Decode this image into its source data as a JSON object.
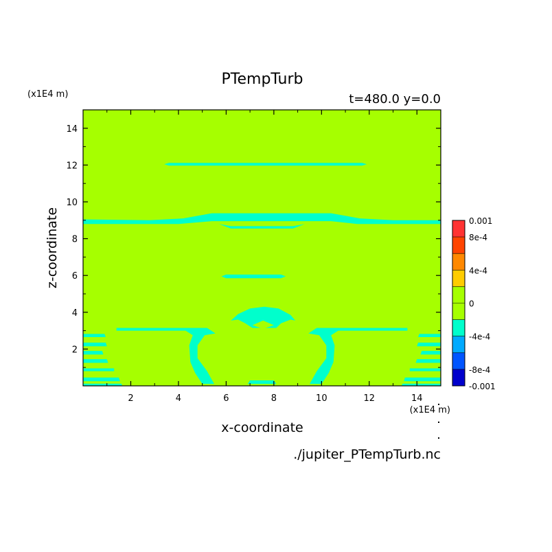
{
  "chart_data": {
    "type": "heatmap",
    "title": "PTempTurb",
    "subtitle": "t=480.0 y=0.0",
    "xlabel": "x-coordinate",
    "ylabel": "z-coordinate",
    "x_unit": "(x1E4 m)",
    "y_unit": "(x1E4 m)",
    "footer": "./jupiter_PTempTurb.nc",
    "xlim": [
      0,
      15
    ],
    "ylim": [
      0,
      15
    ],
    "x_ticks": [
      2,
      4,
      6,
      8,
      10,
      12,
      14
    ],
    "y_ticks": [
      2,
      4,
      6,
      8,
      10,
      12,
      14
    ],
    "background_value_color": "#a6ff00",
    "anomaly_color": "#00ffcc",
    "colorbar": {
      "labels": [
        {
          "value": 0.001,
          "text": "0.001"
        },
        {
          "value": 0.0008,
          "text": "8e-4"
        },
        {
          "value": 0.0004,
          "text": "4e-4"
        },
        {
          "value": 0,
          "text": "0"
        },
        {
          "value": -0.0004,
          "text": "-4e-4"
        },
        {
          "value": -0.0008,
          "text": "-8e-4"
        },
        {
          "value": -0.001,
          "text": "-0.001"
        }
      ],
      "bands": [
        {
          "from": 0.0008,
          "to": 0.001,
          "color": "#ff3333"
        },
        {
          "from": 0.0006,
          "to": 0.0008,
          "color": "#ff4400"
        },
        {
          "from": 0.0004,
          "to": 0.0006,
          "color": "#ff8800"
        },
        {
          "from": 0.0002,
          "to": 0.0004,
          "color": "#ffcc00"
        },
        {
          "from": 0,
          "to": 0.0002,
          "color": "#a6ff00"
        },
        {
          "from": -0.0002,
          "to": 0,
          "color": "#a6ff00"
        },
        {
          "from": -0.0004,
          "to": -0.0002,
          "color": "#00ffcc"
        },
        {
          "from": -0.0006,
          "to": -0.0004,
          "color": "#00aaff"
        },
        {
          "from": -0.0008,
          "to": -0.0006,
          "color": "#0055ff"
        },
        {
          "from": -0.001,
          "to": -0.0008,
          "color": "#0000cc"
        }
      ]
    },
    "regions": [
      {
        "name": "band-z12",
        "value_band": "-0.0004 to -0.0002",
        "poly": [
          [
            3.4,
            12.05
          ],
          [
            3.6,
            12.12
          ],
          [
            11.7,
            12.12
          ],
          [
            11.9,
            12.05
          ],
          [
            11.7,
            11.97
          ],
          [
            3.6,
            11.97
          ]
        ]
      },
      {
        "name": "band-z9",
        "value_band": "-0.0004 to -0.0002",
        "poly": [
          [
            0,
            9.05
          ],
          [
            2.8,
            9.0
          ],
          [
            4.2,
            9.1
          ],
          [
            5.4,
            9.38
          ],
          [
            10.4,
            9.38
          ],
          [
            11.6,
            9.1
          ],
          [
            13,
            9.0
          ],
          [
            15,
            9.0
          ],
          [
            15,
            8.8
          ],
          [
            11.5,
            8.8
          ],
          [
            10.4,
            8.95
          ],
          [
            5.4,
            8.95
          ],
          [
            4,
            8.8
          ],
          [
            0,
            8.8
          ]
        ]
      },
      {
        "name": "band-z8.6",
        "value_band": "-0.0004 to -0.0002",
        "poly": [
          [
            5.7,
            8.8
          ],
          [
            6.2,
            8.68
          ],
          [
            8.8,
            8.68
          ],
          [
            9.3,
            8.8
          ],
          [
            8.8,
            8.55
          ],
          [
            6.2,
            8.55
          ]
        ]
      },
      {
        "name": "band-z6",
        "value_band": "-0.0004 to -0.0002",
        "poly": [
          [
            5.8,
            5.95
          ],
          [
            6.0,
            6.05
          ],
          [
            8.3,
            6.05
          ],
          [
            8.5,
            5.95
          ],
          [
            8.3,
            5.85
          ],
          [
            6.0,
            5.85
          ]
        ]
      },
      {
        "name": "blob-z4",
        "value_band": "-0.0004 to -0.0002",
        "poly": [
          [
            6.2,
            3.55
          ],
          [
            6.5,
            3.9
          ],
          [
            7.0,
            4.2
          ],
          [
            7.6,
            4.3
          ],
          [
            8.2,
            4.2
          ],
          [
            8.7,
            3.85
          ],
          [
            8.9,
            3.55
          ],
          [
            8.7,
            3.6
          ],
          [
            8.3,
            3.4
          ],
          [
            8.1,
            3.15
          ],
          [
            7.1,
            3.15
          ],
          [
            6.8,
            3.4
          ],
          [
            6.5,
            3.6
          ]
        ]
      },
      {
        "name": "left-arm",
        "value_band": "-0.0004 to -0.0002",
        "poly": [
          [
            1.4,
            3.15
          ],
          [
            5.2,
            3.15
          ],
          [
            5.55,
            2.85
          ],
          [
            5.1,
            2.75
          ],
          [
            4.8,
            2.2
          ],
          [
            4.8,
            1.5
          ],
          [
            5.2,
            0.8
          ],
          [
            5.5,
            0.1
          ],
          [
            5.0,
            0.1
          ],
          [
            4.7,
            0.7
          ],
          [
            4.5,
            1.3
          ],
          [
            4.45,
            2.2
          ],
          [
            4.6,
            2.75
          ],
          [
            4.3,
            3.0
          ],
          [
            1.4,
            3.0
          ]
        ]
      },
      {
        "name": "right-arm",
        "value_band": "-0.0004 to -0.0002",
        "poly": [
          [
            13.6,
            3.15
          ],
          [
            9.8,
            3.15
          ],
          [
            9.45,
            2.85
          ],
          [
            9.9,
            2.75
          ],
          [
            10.2,
            2.2
          ],
          [
            10.2,
            1.5
          ],
          [
            9.8,
            0.8
          ],
          [
            9.5,
            0.1
          ],
          [
            10.0,
            0.1
          ],
          [
            10.3,
            0.7
          ],
          [
            10.5,
            1.3
          ],
          [
            10.55,
            2.2
          ],
          [
            10.4,
            2.75
          ],
          [
            10.7,
            3.0
          ],
          [
            13.6,
            3.0
          ]
        ]
      },
      {
        "name": "bottom-center",
        "value_band": "-0.0004 to -0.0002",
        "poly": [
          [
            6.9,
            0.1
          ],
          [
            7.0,
            0.3
          ],
          [
            8.0,
            0.3
          ],
          [
            8.1,
            0.1
          ]
        ]
      },
      {
        "name": "left-stripe-1",
        "value_band": "-0.0004 to -0.0002",
        "poly": [
          [
            0,
            2.82
          ],
          [
            0.9,
            2.82
          ],
          [
            0.95,
            2.65
          ],
          [
            0,
            2.65
          ]
        ]
      },
      {
        "name": "left-stripe-2",
        "value_band": "-0.0004 to -0.0002",
        "poly": [
          [
            0,
            2.35
          ],
          [
            0.95,
            2.35
          ],
          [
            1.0,
            2.15
          ],
          [
            0,
            2.15
          ]
        ]
      },
      {
        "name": "left-stripe-3",
        "value_band": "-0.0004 to -0.0002",
        "poly": [
          [
            0,
            1.9
          ],
          [
            0.8,
            1.9
          ],
          [
            0.85,
            1.7
          ],
          [
            0,
            1.7
          ]
        ]
      },
      {
        "name": "left-stripe-4",
        "value_band": "-0.0004 to -0.0002",
        "poly": [
          [
            0,
            1.45
          ],
          [
            1.0,
            1.45
          ],
          [
            1.05,
            1.25
          ],
          [
            0,
            1.25
          ]
        ]
      },
      {
        "name": "left-stripe-5",
        "value_band": "-0.0004 to -0.0002",
        "poly": [
          [
            0,
            0.95
          ],
          [
            1.3,
            0.95
          ],
          [
            1.3,
            0.8
          ],
          [
            0,
            0.8
          ]
        ]
      },
      {
        "name": "left-stripe-6",
        "value_band": "-0.0004 to -0.0002",
        "poly": [
          [
            0,
            0.45
          ],
          [
            1.5,
            0.45
          ],
          [
            1.55,
            0.25
          ],
          [
            0,
            0.25
          ]
        ]
      },
      {
        "name": "left-stripe-7",
        "value_band": "-0.0004 to -0.0002",
        "poly": [
          [
            0,
            0.12
          ],
          [
            1.6,
            0.12
          ],
          [
            1.65,
            0.0
          ],
          [
            0,
            0.0
          ]
        ]
      },
      {
        "name": "right-stripe-1",
        "value_band": "-0.0004 to -0.0002",
        "poly": [
          [
            15,
            2.82
          ],
          [
            14.1,
            2.82
          ],
          [
            14.05,
            2.65
          ],
          [
            15,
            2.65
          ]
        ]
      },
      {
        "name": "right-stripe-2",
        "value_band": "-0.0004 to -0.0002",
        "poly": [
          [
            15,
            2.35
          ],
          [
            14.05,
            2.35
          ],
          [
            14.0,
            2.15
          ],
          [
            15,
            2.15
          ]
        ]
      },
      {
        "name": "right-stripe-3",
        "value_band": "-0.0004 to -0.0002",
        "poly": [
          [
            15,
            1.9
          ],
          [
            14.2,
            1.9
          ],
          [
            14.15,
            1.7
          ],
          [
            15,
            1.7
          ]
        ]
      },
      {
        "name": "right-stripe-4",
        "value_band": "-0.0004 to -0.0002",
        "poly": [
          [
            15,
            1.45
          ],
          [
            14.0,
            1.45
          ],
          [
            13.95,
            1.25
          ],
          [
            15,
            1.25
          ]
        ]
      },
      {
        "name": "right-stripe-5",
        "value_band": "-0.0004 to -0.0002",
        "poly": [
          [
            15,
            0.95
          ],
          [
            13.7,
            0.95
          ],
          [
            13.7,
            0.8
          ],
          [
            15,
            0.8
          ]
        ]
      },
      {
        "name": "right-stripe-6",
        "value_band": "-0.0004 to -0.0002",
        "poly": [
          [
            15,
            0.45
          ],
          [
            13.5,
            0.45
          ],
          [
            13.45,
            0.25
          ],
          [
            15,
            0.25
          ]
        ]
      },
      {
        "name": "right-stripe-7",
        "value_band": "-0.0004 to -0.0002",
        "poly": [
          [
            15,
            0.12
          ],
          [
            13.4,
            0.12
          ],
          [
            13.35,
            0.0
          ],
          [
            15,
            0.0
          ]
        ]
      }
    ],
    "inner_region": {
      "name": "blob-z4-core",
      "value_band": "-0.0002 to 0",
      "poly": [
        [
          7.1,
          3.3
        ],
        [
          7.55,
          3.55
        ],
        [
          8.0,
          3.3
        ],
        [
          7.55,
          3.1
        ]
      ]
    }
  }
}
